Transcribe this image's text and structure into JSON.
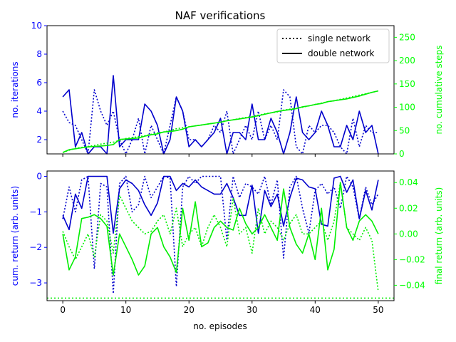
{
  "chart_data": [
    {
      "type": "line",
      "title": "NAF verifications",
      "xlabel": "",
      "ylabel": "no. iterations",
      "ylabel_right": "no. cumulative steps",
      "xlim": [
        -2.5,
        52.5
      ],
      "ylim": [
        1,
        10
      ],
      "ylim_right": [
        0,
        275
      ],
      "x_ticks": [
        0,
        10,
        20,
        30,
        40,
        50
      ],
      "y_ticks": [
        2,
        4,
        6,
        8,
        10
      ],
      "y_ticks_right": [
        0,
        50,
        100,
        150,
        200,
        250
      ],
      "grid": false,
      "legend": {
        "placement": "top-right",
        "entries": [
          {
            "label": "single network",
            "style": "dotted"
          },
          {
            "label": "double network",
            "style": "solid"
          }
        ]
      },
      "colors": {
        "left_axis": "#0000ff",
        "right_axis": "#00ff00",
        "iterations": "#0000cc",
        "steps": "#00ee00"
      },
      "x": [
        0,
        1,
        2,
        3,
        4,
        5,
        6,
        7,
        8,
        9,
        10,
        11,
        12,
        13,
        14,
        15,
        16,
        17,
        18,
        19,
        20,
        21,
        22,
        23,
        24,
        25,
        26,
        27,
        28,
        29,
        30,
        31,
        32,
        33,
        34,
        35,
        36,
        37,
        38,
        39,
        40,
        41,
        42,
        43,
        44,
        45,
        46,
        47,
        48,
        49,
        50
      ],
      "series": [
        {
          "name": "single network",
          "axis": "left",
          "style": "dotted",
          "color": "#0000cc",
          "values": [
            4,
            3.2,
            3,
            2,
            1,
            5.5,
            4,
            3,
            4,
            2,
            1,
            2,
            3.5,
            1,
            3,
            2,
            1,
            3,
            5,
            4,
            2,
            2,
            1.5,
            2,
            3,
            2.5,
            4,
            1,
            2,
            3,
            2,
            4,
            2,
            3,
            2,
            5.5,
            5,
            1.5,
            1,
            3,
            2.5,
            3,
            3,
            2.5,
            1.5,
            1,
            3.5,
            1.5,
            3,
            2.5,
            2.5
          ]
        },
        {
          "name": "double network",
          "axis": "left",
          "style": "solid",
          "color": "#0000cc",
          "values": [
            5,
            5.5,
            1.5,
            2.5,
            1,
            1.5,
            1.5,
            1,
            6.5,
            1.5,
            2,
            2,
            2,
            4.5,
            4,
            3,
            1,
            2,
            5,
            4,
            1.5,
            2,
            1.5,
            2,
            2.5,
            3.5,
            1,
            2.5,
            2.5,
            2,
            4.5,
            2,
            2,
            3.5,
            2.5,
            1,
            2.5,
            5,
            2.5,
            2,
            2.5,
            4,
            3,
            1.5,
            1.5,
            3,
            2,
            4,
            2.5,
            3,
            1
          ]
        },
        {
          "name": "single network",
          "axis": "right",
          "style": "dotted",
          "color": "#00ee00",
          "values": [
            3,
            8,
            12,
            14,
            16,
            18,
            21,
            23,
            25,
            29,
            33,
            35,
            37,
            39,
            42,
            45,
            47,
            50,
            54,
            56,
            58,
            60,
            62,
            64,
            66,
            68,
            71,
            73,
            76,
            78,
            80,
            83,
            86,
            88,
            90,
            94,
            96,
            98,
            100,
            103,
            106,
            109,
            112,
            114,
            117,
            120,
            123,
            126,
            129,
            132,
            135
          ]
        },
        {
          "name": "double network",
          "axis": "right",
          "style": "solid",
          "color": "#00ee00",
          "values": [
            3,
            9,
            11,
            13,
            15,
            16,
            17,
            18,
            20,
            31,
            32,
            33,
            34,
            38,
            41,
            43,
            47,
            48,
            50,
            53,
            58,
            60,
            62,
            64,
            66,
            68,
            71,
            73,
            75,
            77,
            79,
            82,
            85,
            88,
            91,
            93,
            95,
            97,
            101,
            103,
            106,
            108,
            112,
            114,
            116,
            118,
            121,
            124,
            128,
            132,
            135
          ]
        }
      ]
    },
    {
      "type": "line",
      "title": "",
      "xlabel": "no. episodes",
      "ylabel": "cum. return (arb. units)",
      "ylabel_right": "final return (arb. units)",
      "xlim": [
        -2.5,
        52.5
      ],
      "ylim": [
        -3.5,
        0.15
      ],
      "ylim_right": [
        -0.052,
        0.049
      ],
      "x_ticks": [
        0,
        10,
        20,
        30,
        40,
        50
      ],
      "y_ticks": [
        -3,
        -2,
        -1,
        0
      ],
      "y_ticks_right": [
        -0.04,
        -0.02,
        0.0,
        0.02,
        0.04
      ],
      "y_tick_labels_right": [
        "−0.04",
        "−0.02",
        "0.00",
        "0.02",
        "0.04"
      ],
      "grid": false,
      "colors": {
        "left_axis": "#0000ff",
        "right_axis": "#00ff00",
        "cum_return": "#0000cc",
        "final_return": "#00ee00"
      },
      "x": [
        0,
        1,
        2,
        3,
        4,
        5,
        6,
        7,
        8,
        9,
        10,
        11,
        12,
        13,
        14,
        15,
        16,
        17,
        18,
        19,
        20,
        21,
        22,
        23,
        24,
        25,
        26,
        27,
        28,
        29,
        30,
        31,
        32,
        33,
        34,
        35,
        36,
        37,
        38,
        39,
        40,
        41,
        42,
        43,
        44,
        45,
        46,
        47,
        48,
        49,
        50
      ],
      "reference_line": {
        "axis": "right",
        "value": -0.05,
        "style": "dotted",
        "color": "#00ee00"
      },
      "series": [
        {
          "name": "single network",
          "axis": "left",
          "style": "dotted",
          "color": "#0000cc",
          "values": [
            -1.2,
            -0.3,
            -1,
            -0.1,
            0,
            -2.6,
            -0.2,
            -0.3,
            -3.3,
            -0.2,
            0,
            -1,
            -0.8,
            0,
            -0.6,
            -0.3,
            0,
            -0.05,
            -3.1,
            -0.3,
            0,
            -0.2,
            0,
            0,
            0,
            0,
            -1.8,
            0,
            -0.6,
            -0.2,
            -0.3,
            -0.5,
            0,
            -0.8,
            -0.1,
            -2.3,
            -0.3,
            0,
            -0.9,
            -1.6,
            -0.4,
            -0.2,
            -0.5,
            -0.3,
            -0.9,
            0,
            -0.3,
            -1.2,
            -0.3,
            -0.8,
            -0.5
          ]
        },
        {
          "name": "double network",
          "axis": "left",
          "style": "solid",
          "color": "#0000cc",
          "values": [
            -1.1,
            -1.5,
            -0.5,
            -0.9,
            0,
            0,
            0,
            0,
            -1.6,
            -0.35,
            -0.1,
            -0.2,
            -0.4,
            -0.8,
            -1.1,
            -0.75,
            0,
            0,
            -0.4,
            -0.2,
            -0.3,
            -0.1,
            -0.3,
            -0.4,
            -0.5,
            -0.5,
            -0.2,
            -0.6,
            -1.1,
            -1.1,
            -0.25,
            -1.6,
            -0.4,
            -0.85,
            -0.5,
            -1.4,
            -0.6,
            -0.05,
            -0.1,
            -0.3,
            -0.35,
            -1.35,
            -1.4,
            -0.05,
            0,
            -0.45,
            -0.1,
            -1.2,
            -0.4,
            -0.95,
            -0.1
          ]
        },
        {
          "name": "single network",
          "axis": "right",
          "style": "dotted",
          "color": "#00ee00",
          "values": [
            0.002,
            -0.01,
            -0.02,
            -0.01,
            0.0,
            -0.018,
            0.015,
            0.01,
            -0.015,
            0.03,
            0.02,
            0.01,
            0.005,
            0.0,
            0.002,
            0.01,
            0.015,
            0.0,
            0.02,
            -0.01,
            0.0,
            0.005,
            -0.01,
            0.005,
            0.015,
            0.005,
            -0.01,
            0.028,
            0.0,
            0.005,
            -0.015,
            0.02,
            0.0,
            0.01,
            0.005,
            -0.005,
            0.008,
            0.015,
            0.0,
            0.0,
            0.005,
            0.01,
            -0.005,
            0.01,
            0.04,
            0.005,
            0.0,
            -0.005,
            0.005,
            -0.005,
            -0.045
          ]
        },
        {
          "name": "double network",
          "axis": "right",
          "style": "solid",
          "color": "#00ee00",
          "values": [
            0.0,
            -0.028,
            -0.018,
            0.012,
            0.013,
            0.015,
            0.012,
            0.006,
            -0.032,
            0.0,
            -0.01,
            -0.02,
            -0.032,
            -0.025,
            0.0,
            0.005,
            -0.01,
            -0.018,
            -0.03,
            0.02,
            -0.005,
            0.025,
            -0.01,
            -0.007,
            0.005,
            0.01,
            0.005,
            0.003,
            0.02,
            0.008,
            0.0,
            0.005,
            0.015,
            0.005,
            -0.005,
            0.035,
            0.005,
            -0.008,
            -0.015,
            0.0,
            -0.02,
            0.02,
            -0.028,
            -0.012,
            0.04,
            0.005,
            -0.005,
            0.01,
            0.015,
            0.01,
            0.0
          ]
        }
      ]
    }
  ]
}
